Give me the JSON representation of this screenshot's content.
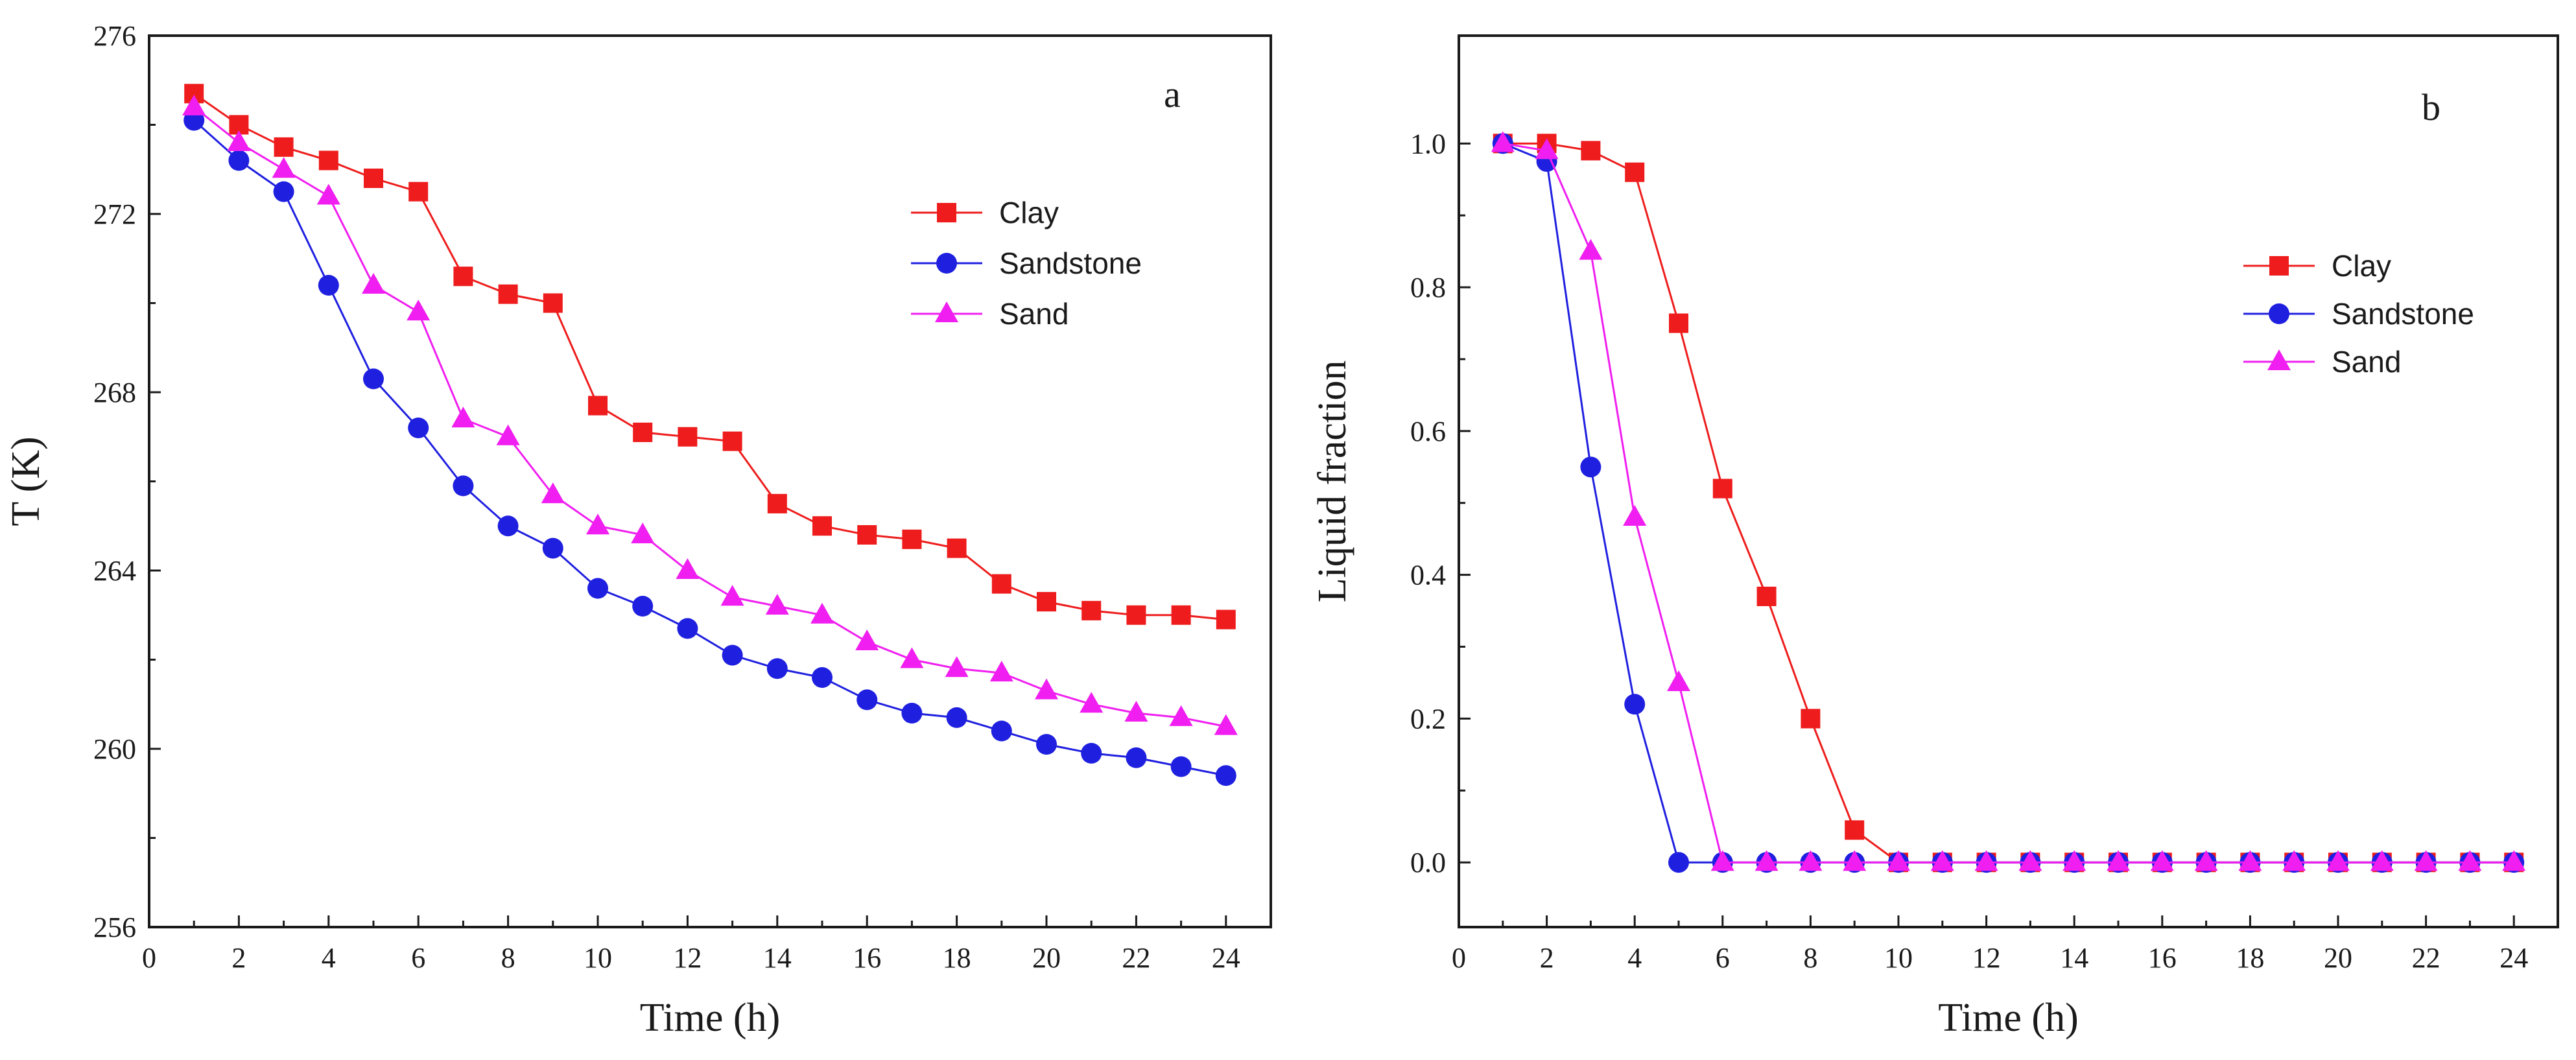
{
  "colors": {
    "clay": "#ee1c1c",
    "sandstone": "#1f1fe0",
    "sand": "#f01ef0",
    "axis": "#1a1a1a"
  },
  "chart_data": [
    {
      "type": "line",
      "panel_label": "a",
      "xlabel": "Time (h)",
      "ylabel": "T (K)",
      "xlim": [
        0,
        25
      ],
      "ylim": [
        256,
        276
      ],
      "xticks": [
        0,
        2,
        4,
        6,
        8,
        10,
        12,
        14,
        16,
        18,
        20,
        22,
        24
      ],
      "yticks": [
        256,
        260,
        264,
        268,
        272,
        276
      ],
      "legend_position": "top-right",
      "x": [
        1,
        2,
        3,
        4,
        5,
        6,
        7,
        8,
        9,
        10,
        11,
        12,
        13,
        14,
        15,
        16,
        17,
        18,
        19,
        20,
        21,
        22,
        23,
        24
      ],
      "series": [
        {
          "name": "Clay",
          "marker": "square",
          "color": "#ee1c1c",
          "values": [
            274.7,
            274.0,
            273.5,
            273.2,
            272.8,
            272.5,
            270.6,
            270.2,
            270.0,
            267.7,
            267.1,
            267.0,
            266.9,
            265.5,
            265.0,
            264.8,
            264.7,
            264.5,
            263.7,
            263.3,
            263.1,
            263.0,
            263.0,
            262.9
          ]
        },
        {
          "name": "Sandstone",
          "marker": "circle",
          "color": "#1f1fe0",
          "values": [
            274.1,
            273.2,
            272.5,
            270.4,
            268.3,
            267.2,
            265.9,
            265.0,
            264.5,
            263.6,
            263.2,
            262.7,
            262.1,
            261.8,
            261.6,
            261.1,
            260.8,
            260.7,
            260.4,
            260.1,
            259.9,
            259.8,
            259.6,
            259.4
          ]
        },
        {
          "name": "Sand",
          "marker": "triangle",
          "color": "#f01ef0",
          "values": [
            274.4,
            273.6,
            273.0,
            272.4,
            270.4,
            269.8,
            267.4,
            267.0,
            265.7,
            265.0,
            264.8,
            264.0,
            263.4,
            263.2,
            263.0,
            262.4,
            262.0,
            261.8,
            261.7,
            261.3,
            261.0,
            260.8,
            260.7,
            260.5
          ]
        }
      ]
    },
    {
      "type": "line",
      "panel_label": "b",
      "xlabel": "Time (h)",
      "ylabel": "Liquid fraction",
      "xlim": [
        0,
        25
      ],
      "ylim": [
        -0.09,
        1.15
      ],
      "xticks": [
        0,
        2,
        4,
        6,
        8,
        10,
        12,
        14,
        16,
        18,
        20,
        22,
        24
      ],
      "yticks": [
        0.0,
        0.2,
        0.4,
        0.6,
        0.8,
        1.0
      ],
      "ytick_labels": [
        "0.0",
        "0.2",
        "0.4",
        "0.6",
        "0.8",
        "1.0"
      ],
      "legend_position": "top-right",
      "x": [
        1,
        2,
        3,
        4,
        5,
        6,
        7,
        8,
        9,
        10,
        11,
        12,
        13,
        14,
        15,
        16,
        17,
        18,
        19,
        20,
        21,
        22,
        23,
        24
      ],
      "series": [
        {
          "name": "Clay",
          "marker": "square",
          "color": "#ee1c1c",
          "values": [
            1.0,
            1.0,
            0.99,
            0.96,
            0.75,
            0.52,
            0.37,
            0.2,
            0.045,
            0,
            0,
            0,
            0,
            0,
            0,
            0,
            0,
            0,
            0,
            0,
            0,
            0,
            0,
            0
          ]
        },
        {
          "name": "Sandstone",
          "marker": "circle",
          "color": "#1f1fe0",
          "values": [
            1.0,
            0.975,
            0.55,
            0.22,
            0,
            0,
            0,
            0,
            0,
            0,
            0,
            0,
            0,
            0,
            0,
            0,
            0,
            0,
            0,
            0,
            0,
            0,
            0,
            0
          ]
        },
        {
          "name": "Sand",
          "marker": "triangle",
          "color": "#f01ef0",
          "values": [
            1.0,
            0.99,
            0.85,
            0.48,
            0.25,
            0,
            0,
            0,
            0,
            0,
            0,
            0,
            0,
            0,
            0,
            0,
            0,
            0,
            0,
            0,
            0,
            0,
            0,
            0
          ]
        }
      ]
    }
  ]
}
